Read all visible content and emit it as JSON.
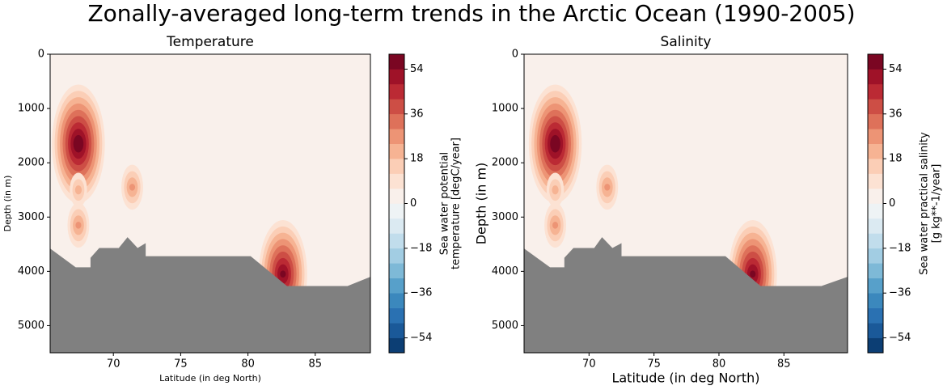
{
  "suptitle": "Zonally-averaged long-term trends in the Arctic Ocean (1990-2005)",
  "chart_data": [
    {
      "type": "contour",
      "title": "Temperature",
      "xlabel": "Latitude (in deg North)",
      "ylabel": "Depth (in m)",
      "colorbar_label": [
        "Sea water potential",
        "temperature [degC/year]"
      ],
      "xlim": [
        65.3,
        89.1
      ],
      "ylim": [
        5500,
        0
      ],
      "xticks": [
        70,
        75,
        80,
        85
      ],
      "yticks": [
        0,
        1000,
        2000,
        3000,
        4000,
        5000
      ],
      "clim": [
        -60,
        60
      ],
      "levels": [
        -60,
        -54,
        -48,
        -42,
        -36,
        -30,
        -24,
        -18,
        -12,
        -6,
        0,
        6,
        12,
        18,
        24,
        30,
        36,
        42,
        48,
        54,
        60
      ],
      "cticks": [
        {
          "value": -54,
          "label": "−54"
        },
        {
          "value": -36,
          "label": "−36"
        },
        {
          "value": -18,
          "label": "−18"
        },
        0,
        18,
        36,
        54
      ],
      "cmap": [
        "#053061",
        "#2166ac",
        "#4393c3",
        "#92c5de",
        "#d1e5f0",
        "#f7f7f7",
        "#fddbc7",
        "#f4a582",
        "#d6604d",
        "#b2182b",
        "#67001f"
      ],
      "background_value": 3,
      "hotspots": {
        "lat": [
          67.4,
          67.4,
          67.4,
          71.4,
          82.6
        ],
        "depth": [
          1650,
          2500,
          3150,
          2450,
          4050
        ],
        "values": [
          60,
          20,
          25,
          25,
          55
        ]
      },
      "seafloor": {
        "lat": [
          65.3,
          67.2,
          68.3,
          68.3,
          68.95,
          70.4,
          71.05,
          71.8,
          72.4,
          72.4,
          73.2,
          80.2,
          82.9,
          87.4,
          89.1
        ],
        "depth": [
          3580,
          3925,
          3925,
          3750,
          3570,
          3570,
          3370,
          3570,
          3480,
          3720,
          3720,
          3720,
          4270,
          4270,
          4100
        ]
      },
      "land_color": "#808080"
    },
    {
      "type": "contour",
      "title": "Salinity",
      "xlabel": "Latitude (in deg North)",
      "ylabel": "Depth (in m)",
      "colorbar_label": [
        "Sea water practical salinity",
        "[g kg**-1/year]"
      ],
      "xlim": [
        65.0,
        89.9
      ],
      "ylim": [
        5500,
        0
      ],
      "xticks": [
        70,
        75,
        80,
        85
      ],
      "yticks": [
        0,
        1000,
        2000,
        3000,
        4000,
        5000
      ],
      "clim": [
        -60,
        60
      ],
      "levels": [
        -60,
        -54,
        -48,
        -42,
        -36,
        -30,
        -24,
        -18,
        -12,
        -6,
        0,
        6,
        12,
        18,
        24,
        30,
        36,
        42,
        48,
        54,
        60
      ],
      "cticks": [
        {
          "value": -54,
          "label": "−54"
        },
        {
          "value": -36,
          "label": "−36"
        },
        {
          "value": -18,
          "label": "−18"
        },
        0,
        18,
        36,
        54
      ],
      "cmap": [
        "#053061",
        "#2166ac",
        "#4393c3",
        "#92c5de",
        "#d1e5f0",
        "#f7f7f7",
        "#fddbc7",
        "#f4a582",
        "#d6604d",
        "#b2182b",
        "#67001f"
      ],
      "background_value": 3,
      "hotspots": {
        "lat": [
          67.4,
          67.4,
          67.4,
          71.4,
          82.6
        ],
        "depth": [
          1650,
          2500,
          3150,
          2450,
          4050
        ],
        "values": [
          60,
          20,
          25,
          25,
          55
        ]
      },
      "seafloor": {
        "lat": [
          65.0,
          67.0,
          68.1,
          68.1,
          68.8,
          70.4,
          71.0,
          71.8,
          72.5,
          72.5,
          73.3,
          80.5,
          83.2,
          87.9,
          89.9
        ],
        "depth": [
          3580,
          3925,
          3925,
          3750,
          3570,
          3570,
          3370,
          3570,
          3480,
          3720,
          3720,
          3720,
          4270,
          4270,
          4100
        ]
      },
      "land_color": "#808080"
    }
  ]
}
